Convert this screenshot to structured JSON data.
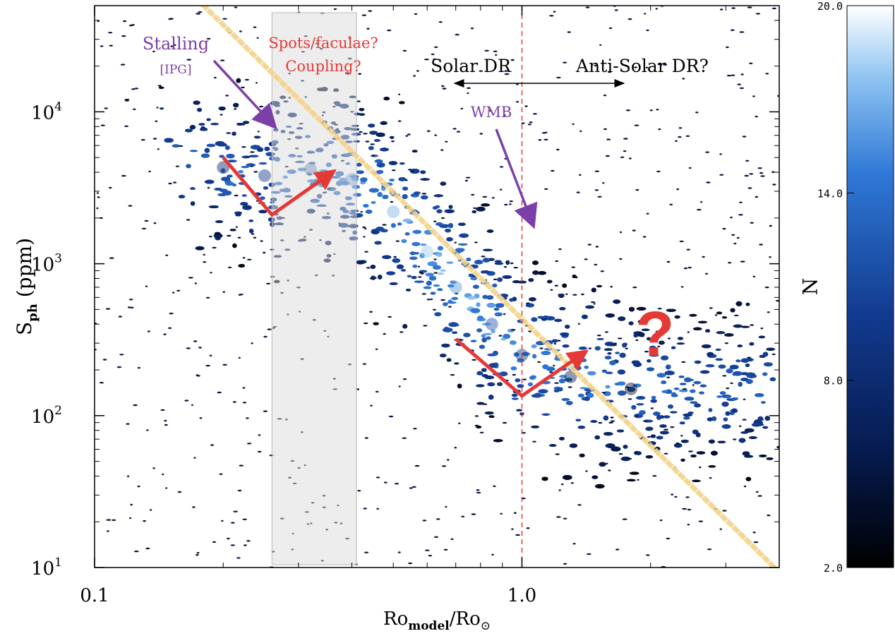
{
  "chart_data": {
    "type": "heatmap",
    "title": "",
    "xlabel": "Ro",
    "xlabel_sub": "model",
    "xlabel_denom": "/Ro",
    "xlabel_sym": "⊙",
    "ylabel": "S",
    "ylabel_sub": "ph",
    "ylabel_unit": " (ppm)",
    "x_scale": "log",
    "y_scale": "log",
    "xlim": [
      0.1,
      4.0
    ],
    "ylim": [
      10,
      50000
    ],
    "x_ticks": [
      {
        "value": 0.1,
        "label": "0.1"
      },
      {
        "value": 1.0,
        "label": "1.0"
      }
    ],
    "y_ticks": [
      {
        "value": 10,
        "base": "10",
        "exp": "1"
      },
      {
        "value": 100,
        "base": "10",
        "exp": "2"
      },
      {
        "value": 1000,
        "base": "10",
        "exp": "3"
      },
      {
        "value": 10000,
        "base": "10",
        "exp": "4"
      }
    ],
    "colorbar": {
      "label": "N",
      "min": 2.0,
      "max": 20.0,
      "ticks": [
        {
          "value": 20.0,
          "label": "20.0"
        },
        {
          "value": 14.0,
          "label": "14.0"
        },
        {
          "value": 8.0,
          "label": "8.0"
        },
        {
          "value": 2.0,
          "label": "2.0"
        }
      ],
      "colors": [
        "#000000",
        "#061a4d",
        "#123a8f",
        "#2f78d6",
        "#8ec3f2",
        "#ffffff"
      ]
    },
    "ridge_points": [
      {
        "x": 0.2,
        "y": 4300,
        "n": 7
      },
      {
        "x": 0.25,
        "y": 3800,
        "n": 9
      },
      {
        "x": 0.32,
        "y": 4200,
        "n": 11
      },
      {
        "x": 0.4,
        "y": 3600,
        "n": 14
      },
      {
        "x": 0.5,
        "y": 2200,
        "n": 17
      },
      {
        "x": 0.6,
        "y": 1200,
        "n": 18
      },
      {
        "x": 0.7,
        "y": 700,
        "n": 16
      },
      {
        "x": 0.85,
        "y": 400,
        "n": 12
      },
      {
        "x": 1.0,
        "y": 250,
        "n": 9
      },
      {
        "x": 1.3,
        "y": 180,
        "n": 6
      },
      {
        "x": 1.8,
        "y": 150,
        "n": 4
      }
    ],
    "gray_band": {
      "x0": 0.26,
      "x1": 0.41
    },
    "vline": {
      "x": 1.0,
      "style": "dashed",
      "color": "#e53935"
    },
    "dotted_line": {
      "points": [
        [
          0.18,
          50000
        ],
        [
          3.9,
          10
        ]
      ],
      "color": "#f5d38a"
    },
    "red_v_left": [
      [
        0.2,
        5000
      ],
      [
        0.26,
        2100
      ],
      [
        0.36,
        4000
      ]
    ],
    "red_v_right": [
      [
        0.7,
        320
      ],
      [
        1.0,
        135
      ],
      [
        1.4,
        260
      ]
    ],
    "double_arrow": {
      "x_from": 0.65,
      "x_to": 1.6,
      "y": 18000
    },
    "annotations": {
      "stalling": "Stalling",
      "ipg": "[IPG]",
      "spots": "Spots/faculae?",
      "coupling": "Coupling?",
      "solar_dr": "Solar DR",
      "anti_solar_dr": "Anti-Solar DR?",
      "wmb": "WMB",
      "question": "?"
    },
    "colors": {
      "purple": "#7b3fa8",
      "red": "#e53935",
      "arrow": "#7b3fa8"
    }
  }
}
